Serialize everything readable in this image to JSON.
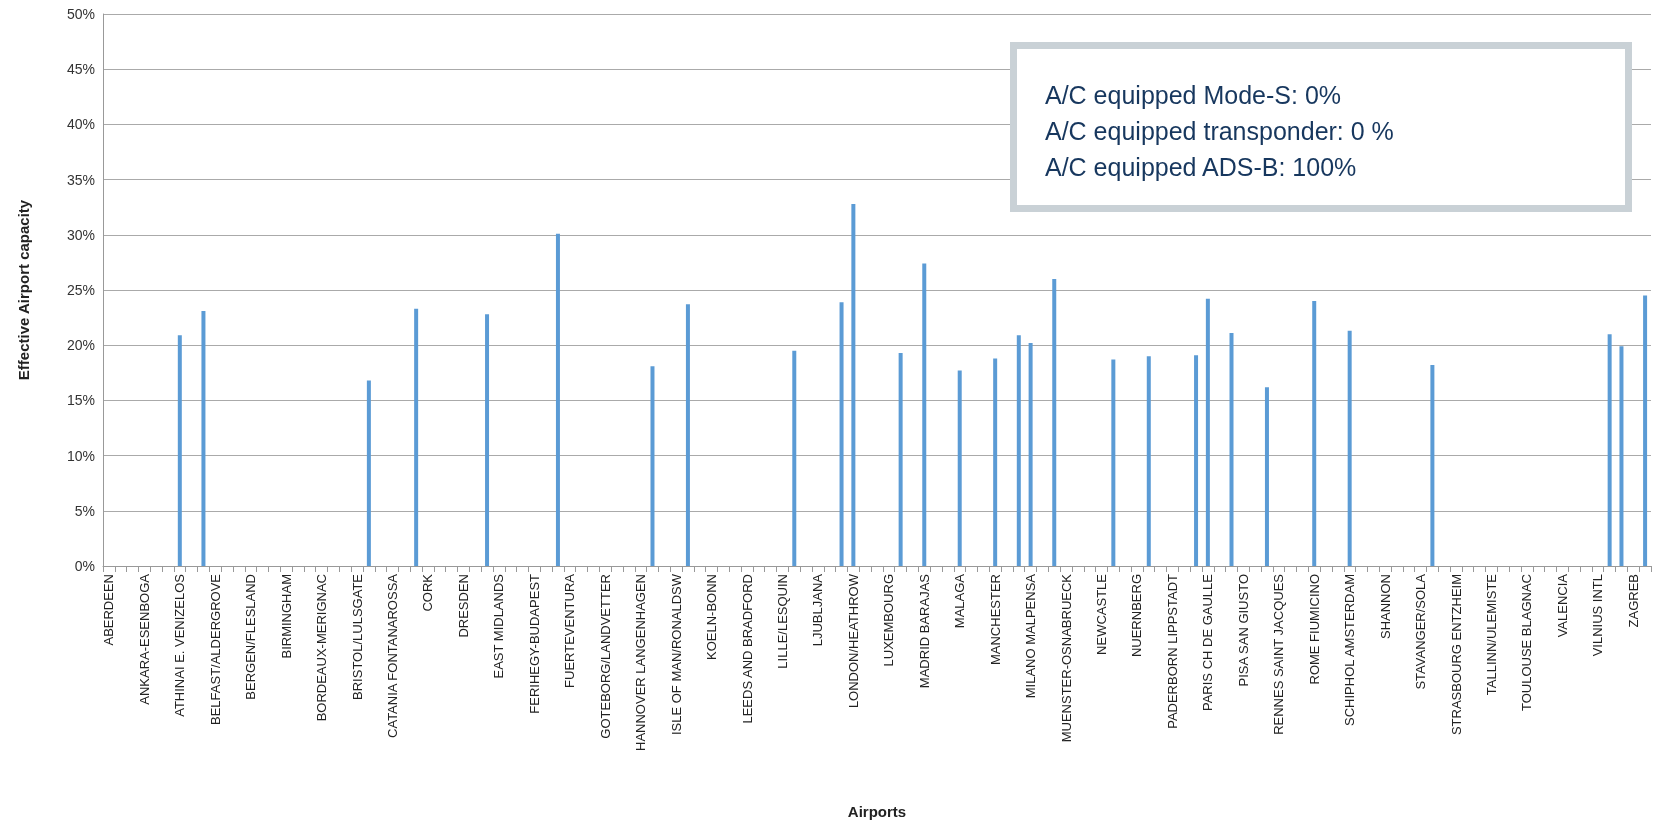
{
  "chart_data": {
    "type": "bar",
    "xlabel": "Airports",
    "ylabel": "Effective Airport capacity",
    "categories": [
      "ABERDEEN",
      null,
      null,
      "ANKARA-ESENBOGA",
      null,
      null,
      "ATHINAI E. VENIZELOS",
      null,
      null,
      "BELFAST/ALDERGROVE",
      null,
      null,
      "BERGEN/FLESLAND",
      null,
      null,
      "BIRMINGHAM",
      null,
      null,
      "BORDEAUX-MERIGNAC",
      null,
      null,
      "BRISTOL/LULSGATE",
      null,
      null,
      "CATANIA FONTANAROSSA",
      null,
      null,
      "CORK",
      null,
      null,
      "DRESDEN",
      null,
      null,
      "EAST MIDLANDS",
      null,
      null,
      "FERIHEGY-BUDAPEST",
      null,
      null,
      "FUERTEVENTURA",
      null,
      null,
      "GOTEBORG/LANDVETTER",
      null,
      null,
      "HANNOVER LANGENHAGEN",
      null,
      null,
      "ISLE OF MAN/RONALDSW",
      null,
      null,
      "KOELN-BONN",
      null,
      null,
      "LEEDS AND BRADFORD",
      null,
      null,
      "LILLE/LESQUIN",
      null,
      null,
      "LJUBLJANA",
      null,
      null,
      "LONDON/HEATHROW",
      null,
      null,
      "LUXEMBOURG",
      null,
      null,
      "MADRID BARAJAS",
      null,
      null,
      "MALAGA",
      null,
      null,
      "MANCHESTER",
      null,
      null,
      "MILANO MALPENSA",
      null,
      null,
      "MUENSTER-OSNABRUECK",
      null,
      null,
      "NEWCASTLE",
      null,
      null,
      "NUERNBERG",
      null,
      null,
      "PADERBORN LIPPSTADT",
      null,
      null,
      "PARIS CH DE GAULLE",
      null,
      null,
      "PISA SAN GIUSTO",
      null,
      null,
      "RENNES SAINT JACQUES",
      null,
      null,
      "ROME FIUMICINO",
      null,
      null,
      "SCHIPHOL AMSTERDAM",
      null,
      null,
      "SHANNON",
      null,
      null,
      "STAVANGER/SOLA",
      null,
      null,
      "STRASBOURG ENTZHEIM",
      null,
      null,
      "TALLINN/ULEMISTE",
      null,
      null,
      "TOULOUSE BLAGNAC",
      null,
      null,
      "VALENCIA",
      null,
      null,
      "VILNIUS INTL",
      null,
      null,
      "ZAGREB",
      null
    ],
    "values": [
      0,
      0,
      0,
      0,
      0,
      0,
      20.9,
      0,
      23.1,
      0,
      0,
      0,
      0,
      0,
      0,
      0,
      0,
      0,
      0,
      0,
      0,
      0,
      16.8,
      0,
      0,
      0,
      23.3,
      0,
      0,
      0,
      0,
      0,
      22.8,
      0,
      0,
      0,
      0,
      0,
      30.1,
      0,
      0,
      0,
      0,
      0,
      0,
      0,
      18.1,
      0,
      0,
      23.7,
      0,
      0,
      0,
      0,
      0,
      0,
      0,
      0,
      19.5,
      0,
      0,
      0,
      23.9,
      32.8,
      0,
      0,
      0,
      19.3,
      0,
      27.4,
      0,
      0,
      17.7,
      0,
      0,
      18.8,
      0,
      20.9,
      20.2,
      0,
      26.0,
      0,
      0,
      0,
      0,
      18.7,
      0,
      0,
      19.0,
      0,
      0,
      0,
      19.1,
      24.2,
      0,
      21.1,
      0,
      0,
      16.2,
      0,
      0,
      0,
      24.0,
      0,
      0,
      21.3,
      0,
      0,
      0,
      0,
      0,
      0,
      18.2,
      0,
      0,
      0,
      0,
      0,
      0,
      0,
      0,
      0,
      0,
      0,
      0,
      0,
      0,
      21.0,
      19.9,
      0,
      24.5
    ],
    "color": "#5b9bd5",
    "ylim": [
      0,
      50
    ],
    "yticks": [
      {
        "value": 0,
        "label": "0%"
      },
      {
        "value": 5,
        "label": "5%"
      },
      {
        "value": 10,
        "label": "10%"
      },
      {
        "value": 15,
        "label": "15%"
      },
      {
        "value": 20,
        "label": "20%"
      },
      {
        "value": 25,
        "label": "25%"
      },
      {
        "value": 30,
        "label": "30%"
      },
      {
        "value": 35,
        "label": "35%"
      },
      {
        "value": 40,
        "label": "40%"
      },
      {
        "value": 45,
        "label": "45%"
      },
      {
        "value": 50,
        "label": "50%"
      }
    ],
    "grid": "y",
    "annotations": [
      "A/C equipped Mode-S: 0%",
      "A/C equipped transponder: 0 %",
      "A/C equipped ADS-B: 100%"
    ]
  }
}
